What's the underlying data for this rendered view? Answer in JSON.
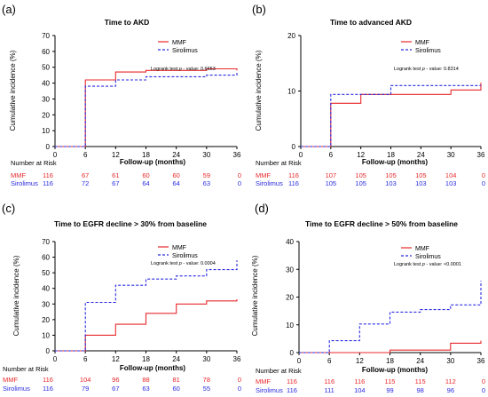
{
  "colors": {
    "mmf": "#e8282b",
    "sirolimus": "#2a2ae0",
    "axis": "#000000"
  },
  "panels": [
    {
      "tag": "(a)",
      "title": "Time to AKD",
      "risk_header": "Number at Risk",
      "risk_rows": [
        {
          "label": "MMF",
          "counts": [
            "116",
            "67",
            "61",
            "60",
            "60",
            "59",
            "0"
          ]
        },
        {
          "label": "Sirolimus",
          "counts": [
            "116",
            "72",
            "67",
            "64",
            "64",
            "63",
            "0"
          ]
        }
      ],
      "pval_prefix": "Logrank test ",
      "pval_p": "p",
      "pval_rest": " - value: 0.6653"
    },
    {
      "tag": "(b)",
      "title": "Time to advanced AKD",
      "risk_header": "Number at Risk",
      "risk_rows": [
        {
          "label": "MMF",
          "counts": [
            "116",
            "107",
            "105",
            "105",
            "105",
            "104",
            "0"
          ]
        },
        {
          "label": "Sirolimus",
          "counts": [
            "116",
            "105",
            "105",
            "103",
            "103",
            "103",
            "0"
          ]
        }
      ],
      "pval_prefix": "Logrank test ",
      "pval_p": "p",
      "pval_rest": " - value: 0.8314"
    },
    {
      "tag": "(c)",
      "title": "Time to EGFR decline > 30% from baseline",
      "risk_header": "Number at Risk",
      "risk_rows": [
        {
          "label": "MMF",
          "counts": [
            "116",
            "104",
            "96",
            "88",
            "81",
            "78",
            "0"
          ]
        },
        {
          "label": "Sirolimus",
          "counts": [
            "116",
            "79",
            "67",
            "63",
            "60",
            "55",
            "0"
          ]
        }
      ],
      "pval_prefix": "Logrank test ",
      "pval_p": "p",
      "pval_rest": " - value: 0.0004"
    },
    {
      "tag": "(d)",
      "title": "Time to EGFR decline > 50% from baseline",
      "risk_header": "Number at Risk",
      "risk_rows": [
        {
          "label": "MMF",
          "counts": [
            "116",
            "116",
            "116",
            "115",
            "115",
            "112",
            "0"
          ]
        },
        {
          "label": "Sirolimus",
          "counts": [
            "116",
            "111",
            "104",
            "99",
            "98",
            "96",
            "0"
          ]
        }
      ],
      "pval_prefix": "Logrank test ",
      "pval_p": "p",
      "pval_rest": " - value: <0.0001"
    }
  ],
  "chart_data": [
    {
      "type": "line",
      "step": true,
      "title": "Time to AKD",
      "xlabel": "Follow-up  (months)",
      "ylabel": "Cumulative incidence (%)",
      "xlim": [
        0,
        36
      ],
      "ylim": [
        0,
        70
      ],
      "xticks": [
        "0",
        "6",
        "12",
        "18",
        "24",
        "30",
        "36"
      ],
      "yticks": [
        "0",
        "10",
        "20",
        "30",
        "40",
        "50",
        "60",
        "70"
      ],
      "legend": "top-right",
      "grid": false,
      "series": [
        {
          "name": "MMF",
          "x": [
            0,
            6,
            6,
            12,
            12,
            18,
            18,
            24,
            24,
            30,
            30,
            36,
            36
          ],
          "y": [
            0,
            0,
            42,
            42,
            47,
            47,
            48,
            48,
            48,
            48,
            49,
            49,
            48
          ]
        },
        {
          "name": "Sirolimus",
          "x": [
            0,
            6,
            6,
            12,
            12,
            18,
            18,
            24,
            24,
            30,
            30,
            36,
            36
          ],
          "y": [
            0,
            0,
            38,
            38,
            42,
            42,
            44,
            44,
            44,
            44,
            45,
            45,
            47
          ]
        }
      ]
    },
    {
      "type": "line",
      "step": true,
      "title": "Time to advanced AKD",
      "xlabel": "Follow-up  (months)",
      "ylabel": "Cumulative incidence (%)",
      "xlim": [
        0,
        36
      ],
      "ylim": [
        0,
        20
      ],
      "xticks": [
        "0",
        "6",
        "12",
        "18",
        "24",
        "30",
        "36"
      ],
      "yticks": [
        "0",
        "10",
        "20"
      ],
      "legend": "top-right",
      "grid": false,
      "series": [
        {
          "name": "MMF",
          "x": [
            0,
            6,
            6,
            12,
            12,
            18,
            18,
            24,
            24,
            30,
            30,
            36,
            36
          ],
          "y": [
            0,
            0,
            7.8,
            7.8,
            9.4,
            9.4,
            9.4,
            9.4,
            9.4,
            9.4,
            10.2,
            10.2,
            11.5
          ]
        },
        {
          "name": "Sirolimus",
          "x": [
            0,
            6,
            6,
            12,
            12,
            18,
            18,
            24,
            24,
            30,
            30,
            36,
            36
          ],
          "y": [
            0,
            0,
            9.4,
            9.4,
            9.4,
            9.4,
            11.0,
            11.0,
            11.0,
            11.0,
            11.0,
            11.0,
            11.0
          ]
        }
      ]
    },
    {
      "type": "line",
      "step": true,
      "title": "Time to EGFR decline > 30% from baseline",
      "xlabel": "Follow-up  (months)",
      "ylabel": "Cumulative incidence (%)",
      "xlim": [
        0,
        36
      ],
      "ylim": [
        0,
        70
      ],
      "xticks": [
        "0",
        "6",
        "12",
        "18",
        "24",
        "30",
        "36"
      ],
      "yticks": [
        "0",
        "10",
        "20",
        "30",
        "40",
        "50",
        "60",
        "70"
      ],
      "legend": "top-right",
      "grid": false,
      "series": [
        {
          "name": "MMF",
          "x": [
            0,
            6,
            6,
            12,
            12,
            18,
            18,
            24,
            24,
            30,
            30,
            36,
            36
          ],
          "y": [
            0,
            0,
            10,
            10,
            17,
            17,
            24,
            24,
            30,
            30,
            32,
            32,
            33
          ]
        },
        {
          "name": "Sirolimus",
          "x": [
            0,
            6,
            6,
            12,
            12,
            18,
            18,
            24,
            24,
            30,
            30,
            36,
            36
          ],
          "y": [
            0,
            0,
            31,
            31,
            42,
            42,
            46,
            46,
            48,
            48,
            52,
            52,
            58
          ]
        }
      ]
    },
    {
      "type": "line",
      "step": true,
      "title": "Time to EGFR decline > 50% from baseline",
      "xlabel": "Follow-up  (months)",
      "ylabel": "Cumulative incidence (%)",
      "xlim": [
        0,
        36
      ],
      "ylim": [
        0,
        40
      ],
      "xticks": [
        "0",
        "6",
        "12",
        "18",
        "24",
        "30",
        "36"
      ],
      "yticks": [
        "0",
        "10",
        "20",
        "30",
        "40"
      ],
      "legend": "top-right",
      "grid": false,
      "series": [
        {
          "name": "MMF",
          "x": [
            0,
            6,
            6,
            12,
            12,
            18,
            18,
            24,
            24,
            30,
            30,
            36,
            36
          ],
          "y": [
            0,
            0,
            0,
            0,
            0,
            0,
            0.9,
            0.9,
            0.9,
            0.9,
            3.4,
            3.4,
            4.3
          ]
        },
        {
          "name": "Sirolimus",
          "x": [
            0,
            6,
            6,
            12,
            12,
            18,
            18,
            24,
            24,
            30,
            30,
            36,
            36
          ],
          "y": [
            0,
            0,
            4.3,
            4.3,
            10.3,
            10.3,
            14.6,
            14.6,
            15.5,
            15.5,
            17.2,
            17.2,
            25.9
          ]
        }
      ]
    }
  ]
}
